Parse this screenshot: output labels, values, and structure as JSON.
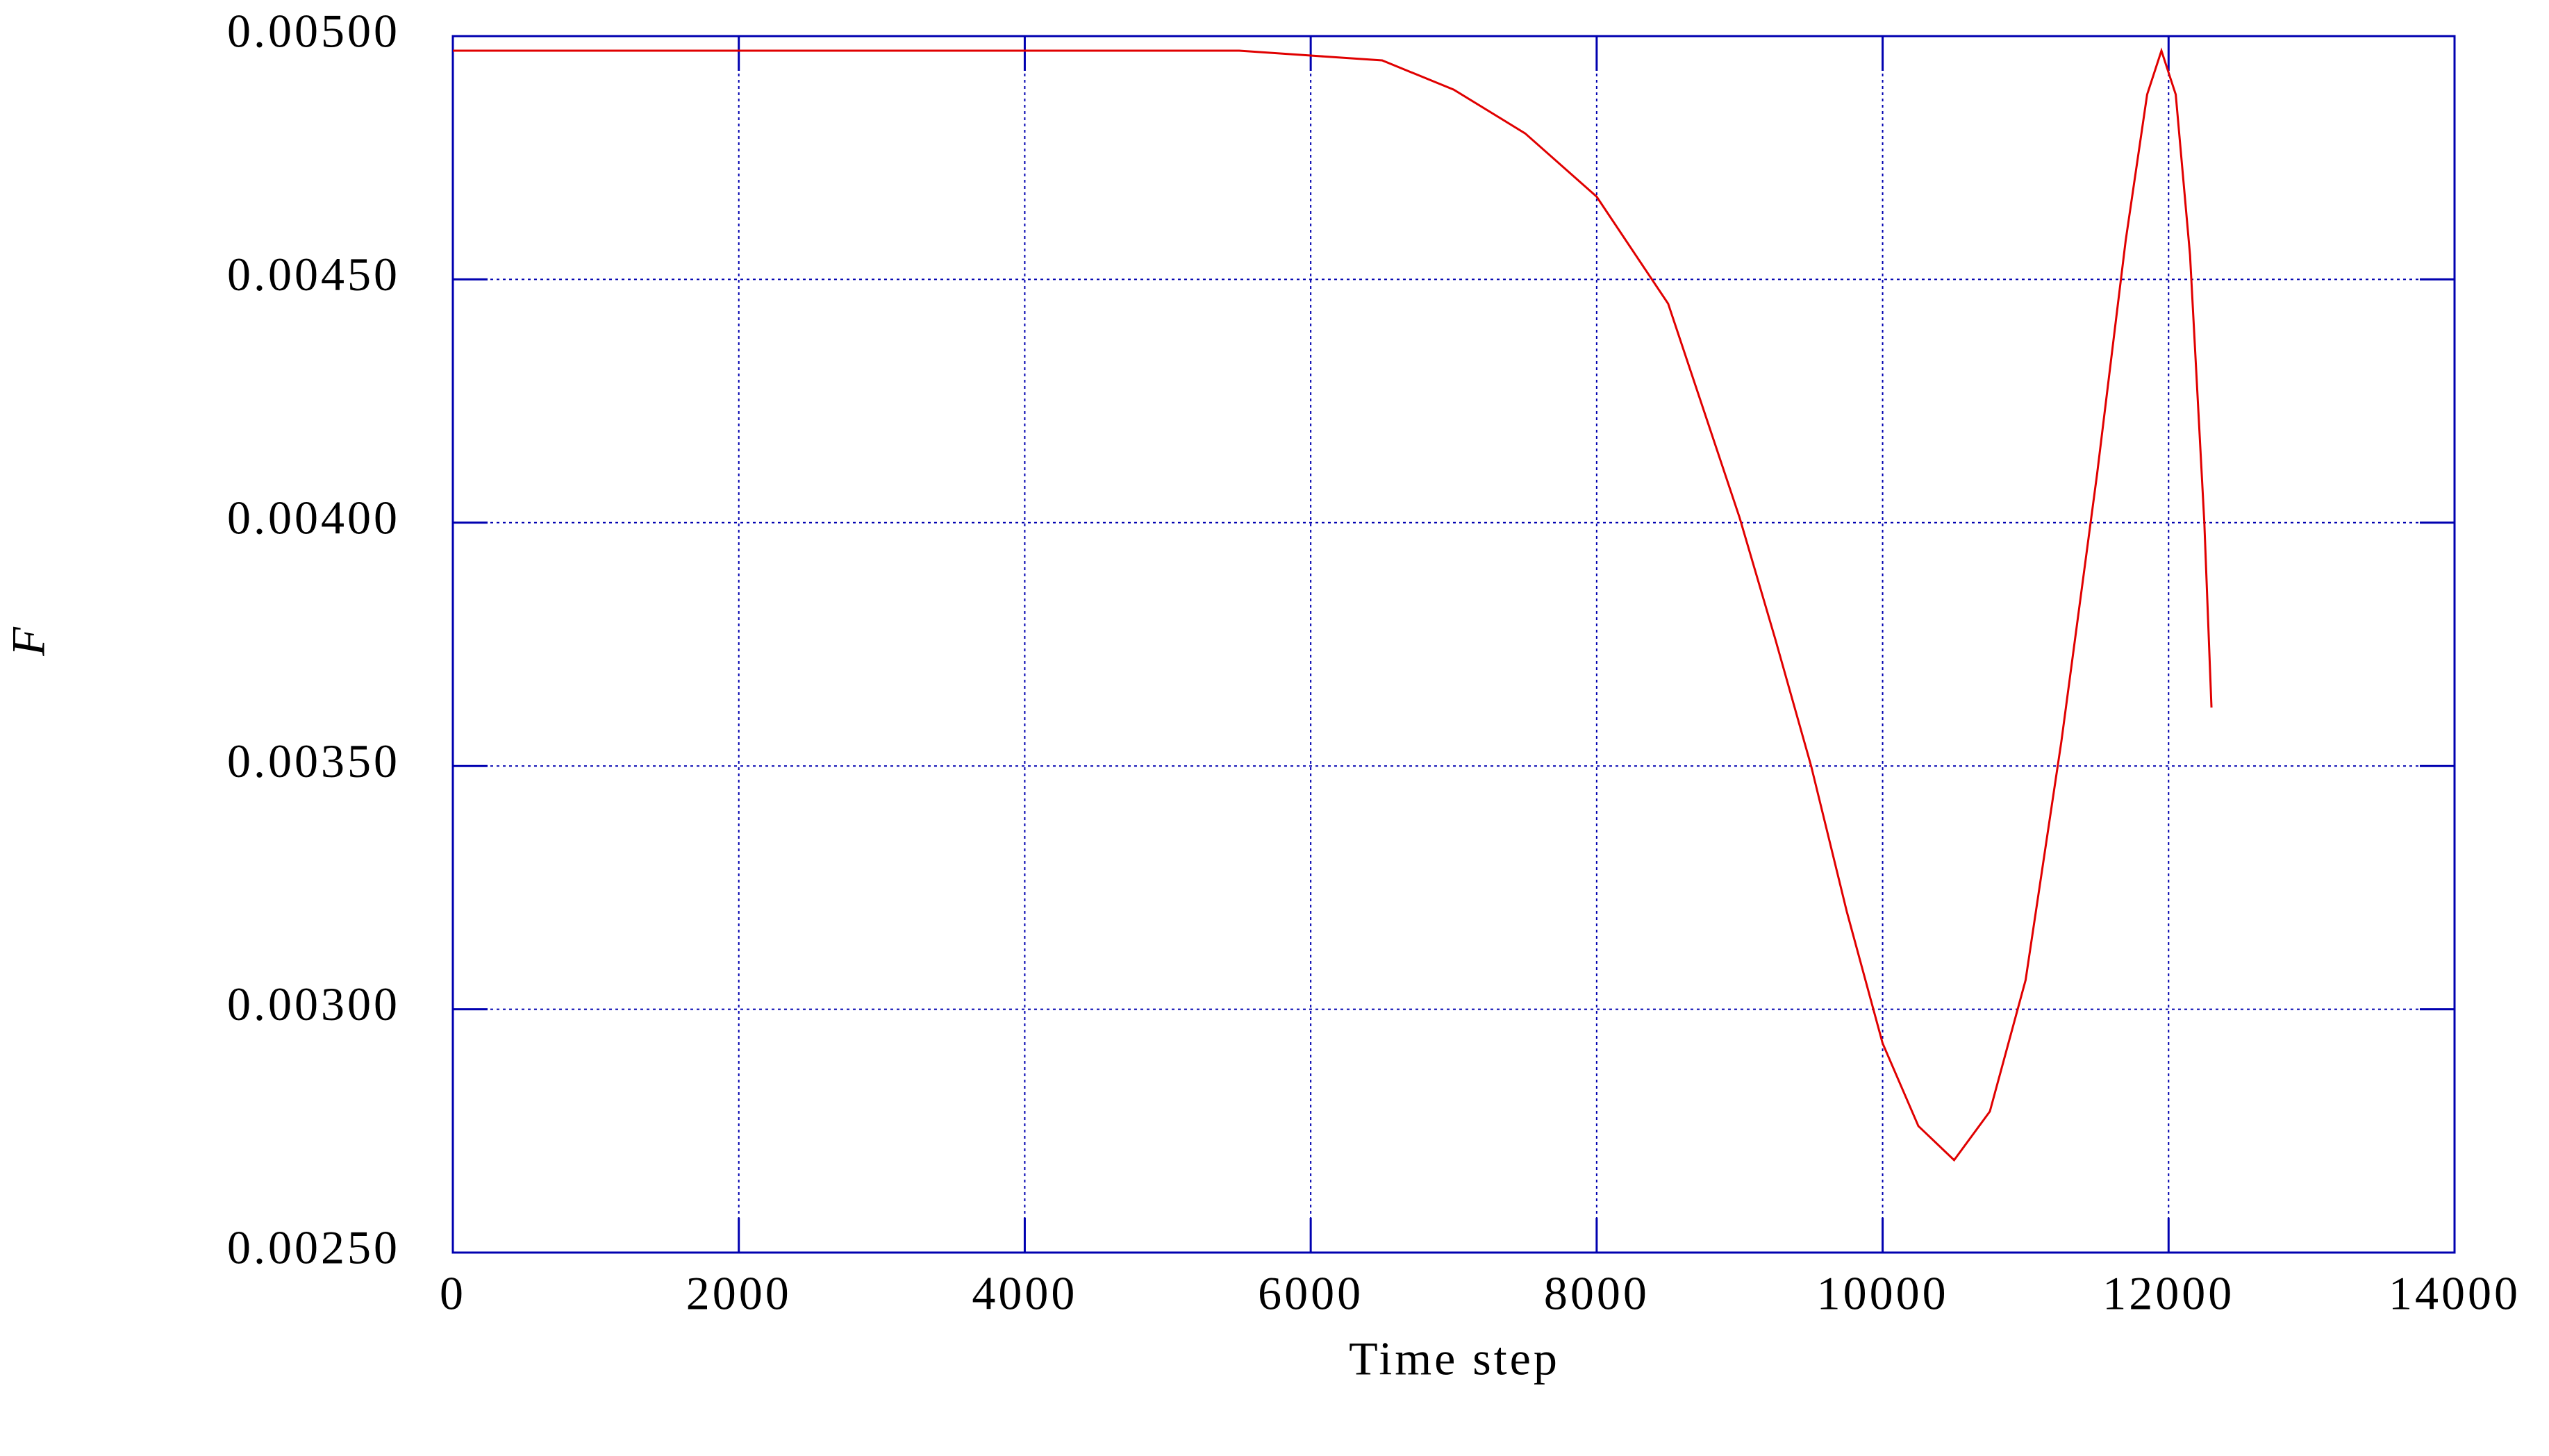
{
  "chart_data": {
    "type": "line",
    "x_label": "Time step",
    "y_label": "F",
    "xlim": [
      0,
      14000
    ],
    "xticks": [
      0,
      2000,
      4000,
      6000,
      8000,
      10000,
      12000,
      14000
    ],
    "ylim": [
      0.0025,
      0.005
    ],
    "yticks": [
      {
        "value": 0.0025,
        "label": "0.00250"
      },
      {
        "value": 0.003,
        "label": "0.00300"
      },
      {
        "value": 0.0035,
        "label": "0.00350"
      },
      {
        "value": 0.004,
        "label": "0.00400"
      },
      {
        "value": 0.0045,
        "label": "0.00450"
      },
      {
        "value": 0.005,
        "label": "0.00500"
      }
    ],
    "grid": true,
    "axis_color": "#0000b0",
    "series": [
      {
        "color": "#e00000",
        "x": [
          0,
          1000,
          2000,
          3000,
          4000,
          5000,
          5500,
          6000,
          6500,
          7000,
          7500,
          8000,
          8500,
          9000,
          9250,
          9500,
          9750,
          10000,
          10250,
          10500,
          10750,
          11000,
          11250,
          11500,
          11700,
          11850,
          11950,
          12050,
          12150,
          12250,
          12300
        ],
        "values": [
          0.00497,
          0.00497,
          0.00497,
          0.00497,
          0.00497,
          0.00497,
          0.00497,
          0.00496,
          0.00495,
          0.00489,
          0.0048,
          0.00467,
          0.00445,
          0.00401,
          0.00376,
          0.0035,
          0.0032,
          0.00293,
          0.00276,
          0.00269,
          0.00279,
          0.00306,
          0.00355,
          0.0041,
          0.00458,
          0.00488,
          0.00497,
          0.00488,
          0.00455,
          0.004,
          0.00362
        ]
      }
    ]
  }
}
